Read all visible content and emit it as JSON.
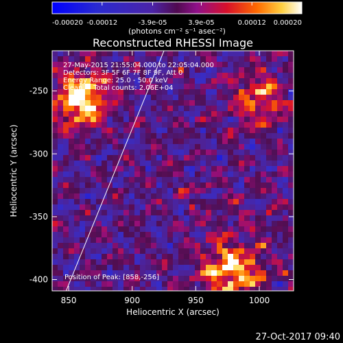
{
  "colorbar": {
    "tick_labels": [
      "-0.00020",
      "-0.00012",
      "-3.9e-05",
      "3.9e-05",
      "0.00012",
      "0.00020"
    ],
    "tick_values": [
      -0.0002,
      -0.00012,
      -3.9e-05,
      3.9e-05,
      0.00012,
      0.0002
    ],
    "range": [
      -0.0002,
      0.0002
    ],
    "units_label": "(photons cm⁻² s⁻¹ asec⁻²)"
  },
  "chart_data": {
    "type": "heatmap",
    "title": "Reconstructed RHESSI Image",
    "xlabel": "Heliocentric X (arcsec)",
    "ylabel": "Heliocentric Y (arcsec)",
    "xlim": [
      837,
      1027
    ],
    "ylim": [
      -409,
      -218
    ],
    "x_ticks": [
      850,
      900,
      950,
      1000
    ],
    "y_ticks": [
      -250,
      -300,
      -350,
      -400
    ],
    "annotations": [
      "27-May-2015 21:55:04.000 to 22:05:04.000",
      "Detectors: 3F 5F 6F 7F 8F 9F, Att 0",
      "Energy Range: 25.0 - 50.0 keV",
      "Clean     Total counts: 2.06E+04"
    ],
    "peak_label": "Position of Peak: [858,-256]",
    "peak_position": [
      858,
      -256
    ],
    "limb_line": [
      [
        848,
        -409
      ],
      [
        925,
        -218
      ]
    ],
    "bright_regions": [
      {
        "x": 860,
        "y": -256,
        "level": "peak"
      },
      {
        "x": 978,
        "y": -393,
        "level": "high"
      },
      {
        "x": 1000,
        "y": -257,
        "level": "medium"
      }
    ]
  },
  "timestamp": "27-Oct-2017 09:40"
}
